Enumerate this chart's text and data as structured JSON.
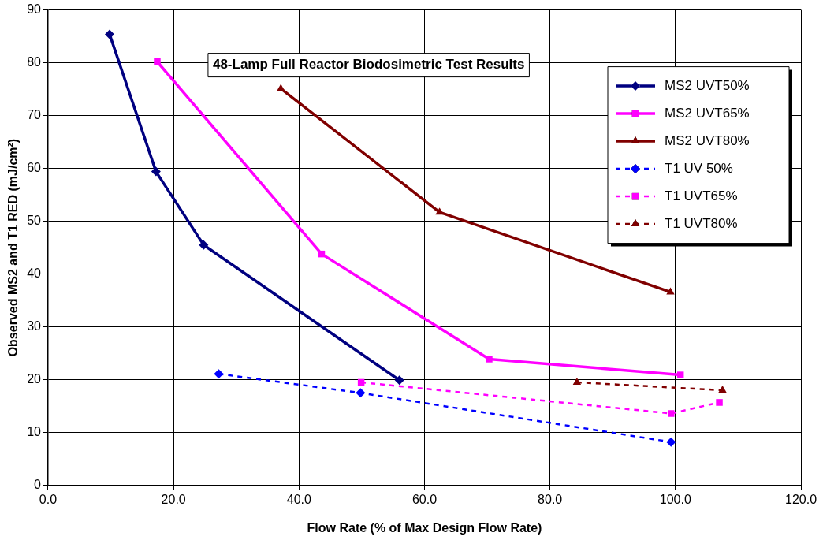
{
  "chart_data": {
    "type": "line",
    "title": "48-Lamp Full Reactor Biodosimetric Test Results",
    "xlabel": "Flow Rate (% of Max Design Flow Rate)",
    "ylabel": "Observed MS2 and T1 RED (mJ/cm²)",
    "series": [
      {
        "name": "MS2 UVT50%",
        "color": "#000080",
        "marker": "diamond",
        "line_style": "solid",
        "x": [
          9.8,
          17.2,
          24.8,
          56.0
        ],
        "values": [
          85.4,
          59.4,
          45.5,
          19.9
        ]
      },
      {
        "name": "MS2 UVT65%",
        "color": "#ff00ff",
        "marker": "square",
        "line_style": "solid",
        "x": [
          17.4,
          43.6,
          70.3,
          100.8
        ],
        "values": [
          80.2,
          43.8,
          23.9,
          20.9
        ]
      },
      {
        "name": "MS2 UVT80%",
        "color": "#800000",
        "marker": "triangle",
        "line_style": "solid",
        "x": [
          37.1,
          62.4,
          99.2
        ],
        "values": [
          75.1,
          51.7,
          36.6
        ]
      },
      {
        "name": "T1 UV 50%",
        "color": "#0000ff",
        "marker": "diamond",
        "line_style": "dashed",
        "x": [
          27.2,
          49.8,
          99.3
        ],
        "values": [
          21.1,
          17.5,
          8.2
        ]
      },
      {
        "name": "T1 UVT65%",
        "color": "#ff00ff",
        "marker": "square",
        "line_style": "dashed",
        "x": [
          49.9,
          99.3,
          107.0
        ],
        "values": [
          19.5,
          13.6,
          15.7
        ]
      },
      {
        "name": "T1 UVT80%",
        "color": "#800000",
        "marker": "triangle",
        "line_style": "dashed",
        "x": [
          84.3,
          107.5
        ],
        "values": [
          19.5,
          18.0
        ]
      }
    ],
    "xlim": [
      0,
      120
    ],
    "xticks": [
      {
        "value": 0,
        "label": "0.0"
      },
      {
        "value": 20,
        "label": "20.0"
      },
      {
        "value": 40,
        "label": "40.0"
      },
      {
        "value": 60,
        "label": "60.0"
      },
      {
        "value": 80,
        "label": "80.0"
      },
      {
        "value": 100,
        "label": "100.0"
      },
      {
        "value": 120,
        "label": "120.0"
      }
    ],
    "ylim": [
      0,
      90
    ],
    "yticks": [
      0,
      10,
      20,
      30,
      40,
      50,
      60,
      70,
      80,
      90
    ],
    "grid": true,
    "legend": "top right"
  }
}
